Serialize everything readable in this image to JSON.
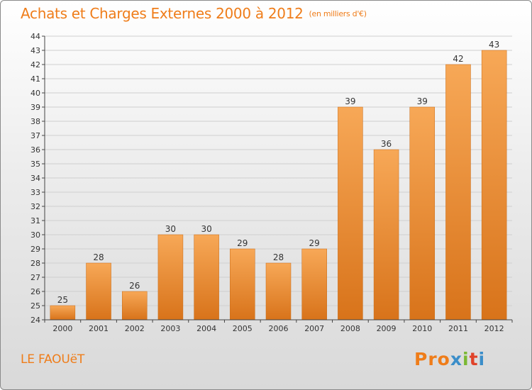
{
  "header": {
    "title": "Achats et Charges Externes 2000 à 2012",
    "subtitle": "(en milliers d'€)"
  },
  "footer": {
    "town": "LE FAOUëT",
    "brand": [
      "P",
      "r",
      "o",
      "x",
      "i",
      "t",
      "i"
    ]
  },
  "colors": {
    "accent": "#ef7d1a",
    "bar_light": "#f7a857",
    "bar_dark": "#d8731a",
    "brand_letters": [
      "#ef7d1a",
      "#ef7d1a",
      "#ef7d1a",
      "#3b8ec9",
      "#7ab833",
      "#e0432a",
      "#3b8ec9"
    ]
  },
  "chart_data": {
    "type": "bar",
    "categories": [
      "2000",
      "2001",
      "2002",
      "2003",
      "2004",
      "2005",
      "2006",
      "2007",
      "2008",
      "2009",
      "2010",
      "2011",
      "2012"
    ],
    "values": [
      25,
      28,
      26,
      30,
      30,
      29,
      28,
      29,
      39,
      36,
      39,
      42,
      43
    ],
    "ylim": [
      24,
      44
    ],
    "yticks": [
      24,
      25,
      26,
      27,
      28,
      29,
      30,
      31,
      32,
      33,
      34,
      35,
      36,
      37,
      38,
      39,
      40,
      41,
      42,
      43,
      44
    ],
    "grid": true
  }
}
